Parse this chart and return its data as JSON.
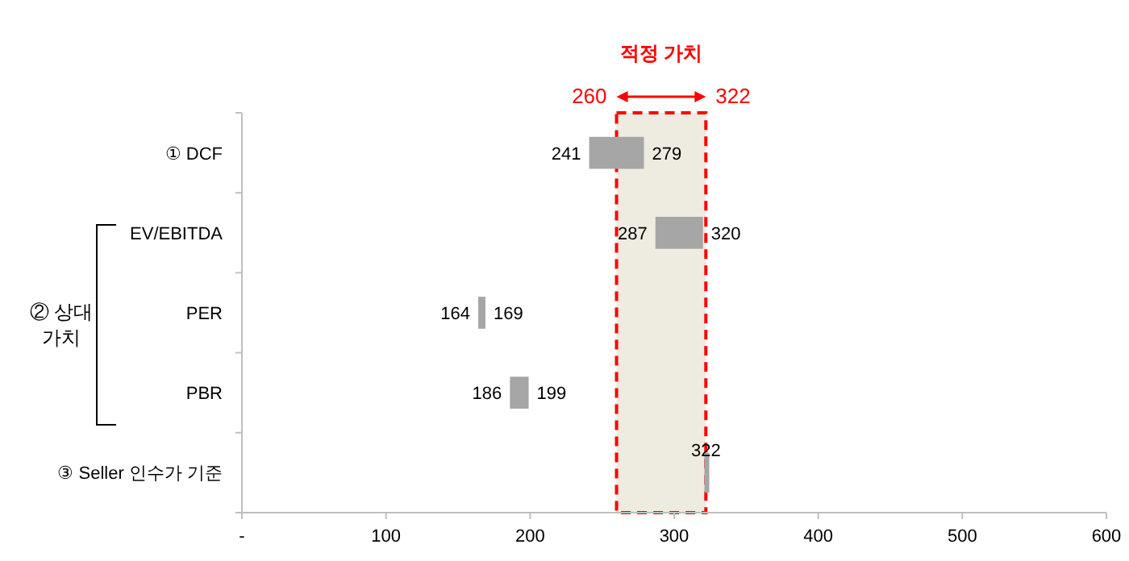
{
  "chart_data": {
    "type": "bar",
    "orientation": "horizontal",
    "categories": [
      "① DCF",
      "EV/EBITDA",
      "PER",
      "PBR",
      "③ Seller 인수가 기준"
    ],
    "base": [
      241,
      287,
      164,
      186,
      321
    ],
    "values": [
      38,
      33,
      5,
      13,
      1
    ],
    "color": "#a6a6a6",
    "xlim": [
      0,
      600
    ],
    "xticks": [
      {
        "value": 0,
        "label": "-"
      },
      100,
      200,
      300,
      400,
      500,
      600
    ],
    "grid": false,
    "bands": [
      {
        "axis": "x",
        "from": 260,
        "to": 322,
        "label": "적정 가치",
        "color": "#ff0000"
      }
    ],
    "annotations": [
      "② 상대 가치",
      "260",
      "322",
      {
        "text": "241",
        "x": 241,
        "y": "① DCF"
      },
      {
        "text": "279",
        "x": 279,
        "y": "① DCF"
      },
      {
        "text": "287",
        "x": 287,
        "y": "EV/EBITDA"
      },
      {
        "text": "320",
        "x": 320,
        "y": "EV/EBITDA"
      },
      {
        "text": "164",
        "x": 164,
        "y": "PER"
      },
      {
        "text": "169",
        "x": 169,
        "y": "PER"
      },
      {
        "text": "186",
        "x": 186,
        "y": "PBR"
      },
      {
        "text": "199",
        "x": 199,
        "y": "PBR"
      },
      {
        "text": "322",
        "x": 322,
        "y": "③ Seller 인수가 기준"
      }
    ]
  }
}
